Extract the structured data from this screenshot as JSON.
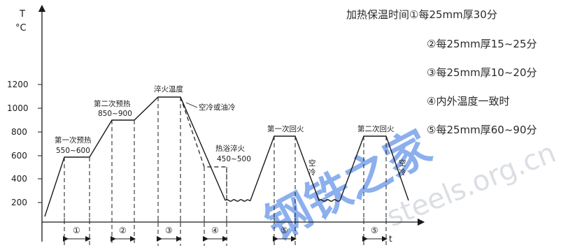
{
  "y_axis": {
    "name_top": "T",
    "name_unit": "°C",
    "ticks": [
      "1200",
      "1000",
      "800",
      "600",
      "400",
      "200"
    ]
  },
  "x_axis": {
    "name": "t"
  },
  "labels": {
    "preheat1": {
      "line1": "第一次预热",
      "line2": "550~600"
    },
    "preheat2": {
      "line1": "第二次预热",
      "line2": "850~900"
    },
    "quench": "淬火温度",
    "cool": "空冷或油冷",
    "bath": {
      "line1": "热浴淬火",
      "line2": "450~500"
    },
    "temper1": "第一次回火",
    "temper2": "第二次回火",
    "air1": [
      "空",
      "冷"
    ],
    "air2": [
      "空",
      "冷"
    ]
  },
  "intervals": [
    "①",
    "②",
    "③",
    "④",
    "⑤",
    "⑤"
  ],
  "legend": {
    "title": "加热保温时间",
    "items": [
      "①每25mm厚30分",
      "②每25mm厚15~25分",
      "③每25mm厚10~20分",
      "④内外温度一致时",
      "⑤每25mm厚60~90分"
    ]
  },
  "watermark": {
    "main": "钢铁之家",
    "sub": "steels.org.cn"
  }
}
